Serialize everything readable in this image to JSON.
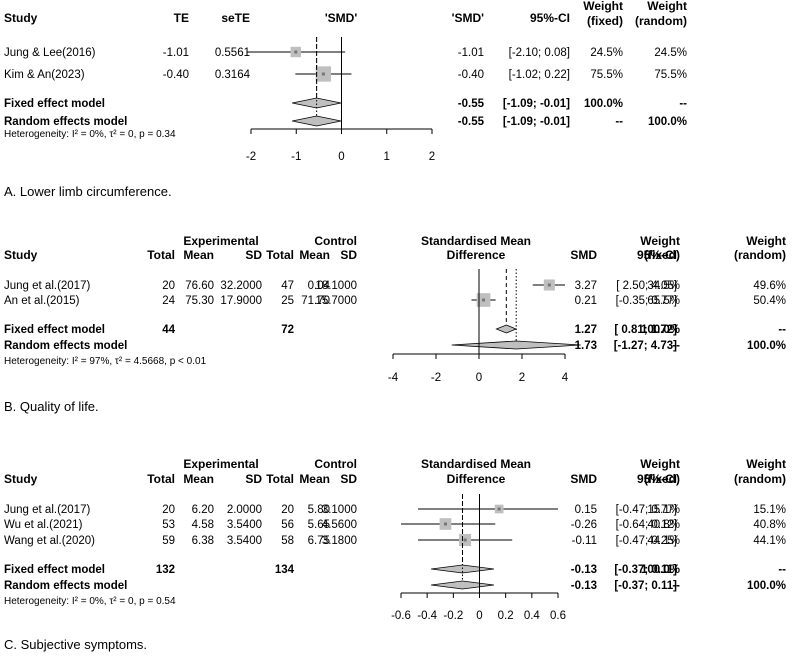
{
  "chart_data": [
    {
      "type": "forest",
      "caption": "A. Lower limb circumference.",
      "columns": {
        "study": "Study",
        "te": "TE",
        "sete": "seTE",
        "plot": "'SMD'",
        "smd": "'SMD'",
        "ci": "95%-CI",
        "wf1": "Weight",
        "wf2": "(fixed)",
        "wr1": "Weight",
        "wr2": "(random)"
      },
      "studies": [
        {
          "name": "Jung & Lee(2016)",
          "te": "-1.01",
          "sete": "0.5561",
          "smd": "-1.01",
          "ci": "[-2.10; 0.08]",
          "wf": "24.5%",
          "wr": "24.5%",
          "est": -1.01,
          "lo": -2.1,
          "hi": 0.08,
          "weight": 24.5
        },
        {
          "name": "Kim & An(2023)",
          "te": "-0.40",
          "sete": "0.3164",
          "smd": "-0.40",
          "ci": "[-1.02; 0.22]",
          "wf": "75.5%",
          "wr": "75.5%",
          "est": -0.4,
          "lo": -1.02,
          "hi": 0.22,
          "weight": 75.5
        }
      ],
      "fixed": {
        "label": "Fixed effect model",
        "smd": "-0.55",
        "ci": "[-1.09; -0.01]",
        "wf": "100.0%",
        "wr": "--",
        "est": -0.55,
        "lo": -1.09,
        "hi": -0.01
      },
      "random": {
        "label": "Random effects model",
        "smd": "-0.55",
        "ci": "[-1.09; -0.01]",
        "wf": "--",
        "wr": "100.0%",
        "est": -0.55,
        "lo": -1.09,
        "hi": -0.01
      },
      "heterogeneity": "Heterogeneity: I² = 0%, τ² = 0, p = 0.34",
      "xlim": [
        -2,
        2
      ],
      "ticks": [
        -2,
        -1,
        0,
        1,
        2
      ],
      "tick_labels": [
        "-2",
        "-1",
        "0",
        "1",
        "2"
      ]
    },
    {
      "type": "forest",
      "caption": "B. Quality of life.",
      "columns": {
        "study": "Study",
        "exp_group": "Experimental",
        "ctl_group": "Control",
        "total": "Total",
        "mean": "Mean",
        "sd": "SD",
        "plot1": "Standardised Mean",
        "plot2": "Difference",
        "smd": "SMD",
        "ci": "95%-CI",
        "wf1": "Weight",
        "wf2": "(fixed)",
        "wr1": "Weight",
        "wr2": "(random)"
      },
      "studies": [
        {
          "name": "Jung et al.(2017)",
          "et": "20",
          "em": "76.60",
          "esd": "32.2000",
          "ct": "47",
          "cm": "0.04",
          "csd": "18.1000",
          "smd": "3.27",
          "ci": "[ 2.50; 4.05]",
          "wf": "34.5%",
          "wr": "49.6%",
          "est": 3.27,
          "lo": 2.5,
          "hi": 4.05,
          "weight": 34.5
        },
        {
          "name": "An et al.(2015)",
          "et": "24",
          "em": "75.30",
          "esd": "17.9000",
          "ct": "25",
          "cm": "71.70",
          "csd": "15.7000",
          "smd": "0.21",
          "ci": "[-0.35; 0.77]",
          "wf": "65.5%",
          "wr": "50.4%",
          "est": 0.21,
          "lo": -0.35,
          "hi": 0.77,
          "weight": 65.5
        }
      ],
      "fixed": {
        "label": "Fixed effect model",
        "et": "44",
        "ct": "72",
        "smd": "1.27",
        "ci": "[ 0.81; 1.72]",
        "wf": "100.0%",
        "wr": "--",
        "est": 1.27,
        "lo": 0.81,
        "hi": 1.72
      },
      "random": {
        "label": "Random effects model",
        "smd": "1.73",
        "ci": "[-1.27; 4.73]",
        "wf": "--",
        "wr": "100.0%",
        "est": 1.73,
        "lo": -1.27,
        "hi": 4.73
      },
      "heterogeneity": "Heterogeneity: I² = 97%, τ² = 4.5668, p < 0.01",
      "xlim": [
        -4,
        4
      ],
      "ticks": [
        -4,
        -2,
        0,
        2,
        4
      ],
      "tick_labels": [
        "-4",
        "-2",
        "0",
        "2",
        "4"
      ]
    },
    {
      "type": "forest",
      "caption": "C. Subjective symptoms.",
      "columns": {
        "study": "Study",
        "exp_group": "Experimental",
        "ctl_group": "Control",
        "total": "Total",
        "mean": "Mean",
        "sd": "SD",
        "plot1": "Standardised Mean",
        "plot2": "Difference",
        "smd": "SMD",
        "ci": "95%-CI",
        "wf1": "Weight",
        "wf2": "(fixed)",
        "wr1": "Weight",
        "wr2": "(random)"
      },
      "studies": [
        {
          "name": "Jung et al.(2017)",
          "et": "20",
          "em": "6.20",
          "esd": "2.0000",
          "ct": "20",
          "cm": "5.80",
          "csd": "3.1000",
          "smd": "0.15",
          "ci": "[-0.47; 0.77]",
          "wf": "15.1%",
          "wr": "15.1%",
          "est": 0.15,
          "lo": -0.47,
          "hi": 0.77,
          "weight": 15.1
        },
        {
          "name": "Wu et al.(2021)",
          "et": "53",
          "em": "4.58",
          "esd": "3.5400",
          "ct": "56",
          "cm": "5.65",
          "csd": "4.5600",
          "smd": "-0.26",
          "ci": "[-0.64; 0.12]",
          "wf": "40.8%",
          "wr": "40.8%",
          "est": -0.26,
          "lo": -0.64,
          "hi": 0.12,
          "weight": 40.8
        },
        {
          "name": "Wang et al.(2020)",
          "et": "59",
          "em": "6.38",
          "esd": "3.5400",
          "ct": "58",
          "cm": "6.75",
          "csd": "3.1800",
          "smd": "-0.11",
          "ci": "[-0.47; 0.25]",
          "wf": "44.1%",
          "wr": "44.1%",
          "est": -0.11,
          "lo": -0.47,
          "hi": 0.25,
          "weight": 44.1
        }
      ],
      "fixed": {
        "label": "Fixed effect model",
        "et": "132",
        "ct": "134",
        "smd": "-0.13",
        "ci": "[-0.37; 0.11]",
        "wf": "100.0%",
        "wr": "--",
        "est": -0.13,
        "lo": -0.37,
        "hi": 0.11
      },
      "random": {
        "label": "Random effects model",
        "smd": "-0.13",
        "ci": "[-0.37; 0.11]",
        "wf": "--",
        "wr": "100.0%",
        "est": -0.13,
        "lo": -0.37,
        "hi": 0.11
      },
      "heterogeneity": "Heterogeneity: I² = 0%, τ² = 0, p = 0.54",
      "xlim": [
        -0.6,
        0.6
      ],
      "ticks": [
        -0.6,
        -0.4,
        -0.2,
        0,
        0.2,
        0.4,
        0.6
      ],
      "tick_labels": [
        "-0.6",
        "-0.4",
        "-0.2",
        "0",
        "0.2",
        "0.4",
        "0.6"
      ]
    }
  ]
}
